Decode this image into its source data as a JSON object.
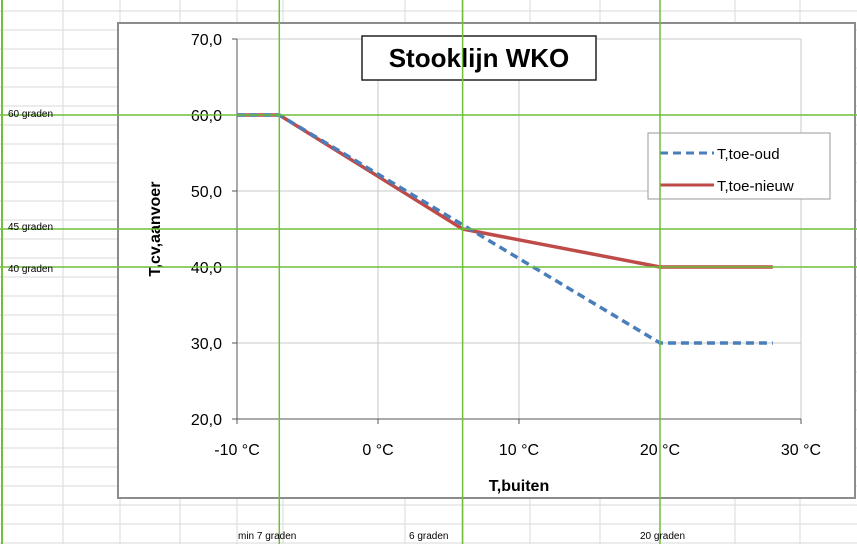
{
  "sheet_labels": {
    "row_60": "60 graden",
    "row_45": "45 graden",
    "row_40": "40 graden",
    "col_min7": "min 7 graden",
    "col_6": "6 graden",
    "col_20": "20 graden"
  },
  "colors": {
    "grid_green": "#6fbf3b",
    "series_old": "#4a7ebb",
    "series_new": "#be4b48"
  },
  "chart_data": {
    "type": "line",
    "title": "Stooklijn WKO",
    "xlabel": "T,buiten",
    "ylabel": "T,cv,aanvoer",
    "xlim": [
      -10,
      30
    ],
    "ylim": [
      20,
      70
    ],
    "x_ticks": [
      "-10 °C",
      "0 °C",
      "10 °C",
      "20 °C",
      "30 °C"
    ],
    "y_ticks": [
      "20,0",
      "30,0",
      "40,0",
      "50,0",
      "60,0",
      "70,0"
    ],
    "grid": true,
    "legend": "right",
    "series": [
      {
        "name": "T,toe-oud",
        "style": "dashed",
        "x": [
          -10,
          -7,
          20,
          28
        ],
        "y": [
          60,
          60,
          30,
          30
        ]
      },
      {
        "name": "T,toe-nieuw",
        "style": "solid",
        "x": [
          -10,
          -7,
          6,
          20,
          28
        ],
        "y": [
          60,
          60,
          45,
          40,
          40
        ]
      }
    ]
  }
}
